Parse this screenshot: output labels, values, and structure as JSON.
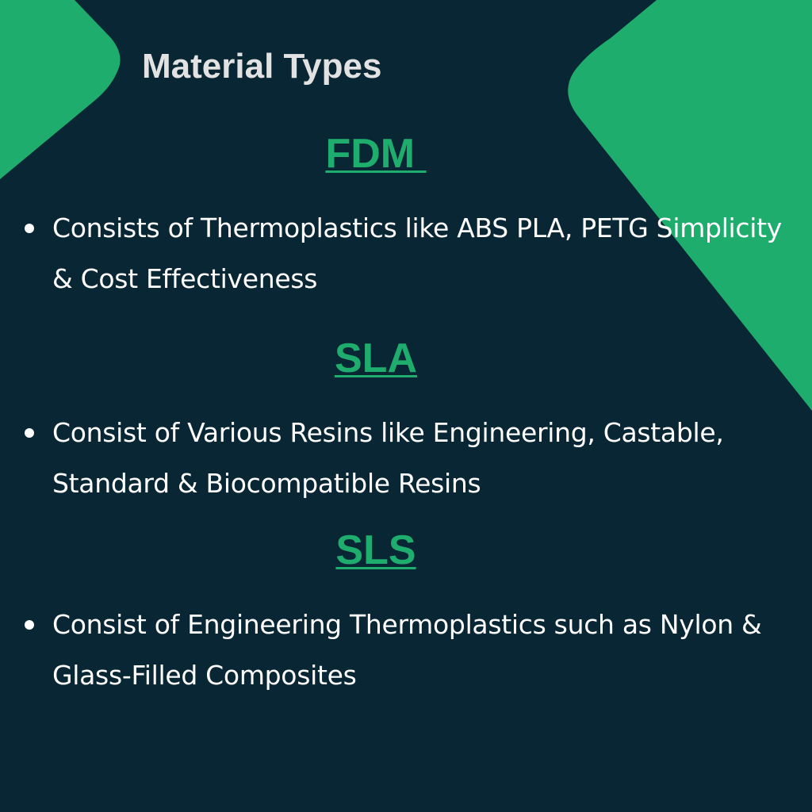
{
  "colors": {
    "background": "#092634",
    "accent": "#1fad6e",
    "title": "#e2e2e2",
    "body_text": "#ffffff",
    "heading": "#1fad6e"
  },
  "title": "Material Types",
  "sections": [
    {
      "heading": "FDM ",
      "bullet": "Consists of Thermoplastics like ABS PLA, PETG Simplicity & Cost Effectiveness"
    },
    {
      "heading": "SLA",
      "bullet": "Consist of Various Resins like Engineering, Castable, Standard & Biocompatible Resins"
    },
    {
      "heading": "SLS",
      "bullet": "Consist of Engineering Thermoplastics such as Nylon & Glass-Filled Composites"
    }
  ]
}
